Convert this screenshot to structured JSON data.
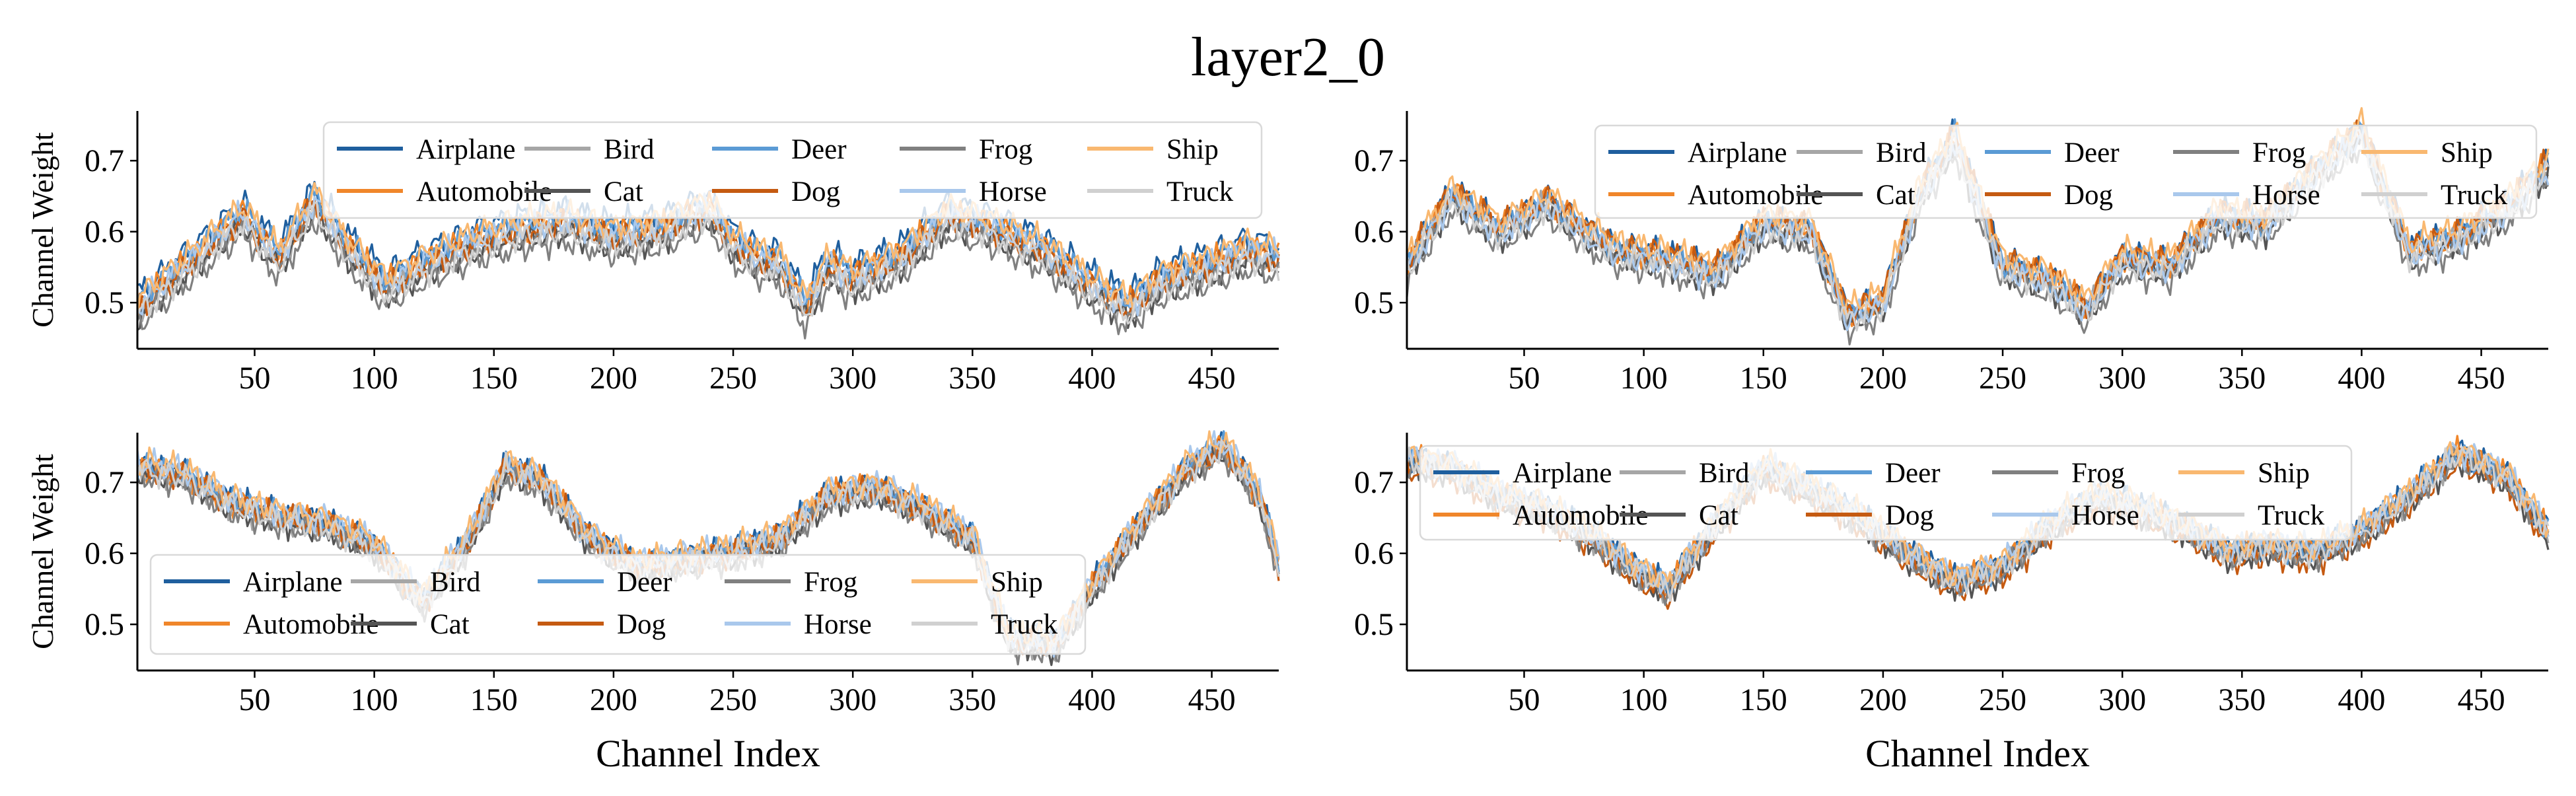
{
  "figure": {
    "title": "layer2_0",
    "ylabel": "Channel Weight",
    "xlabel": "Channel Index"
  },
  "colors": {
    "Airplane": "#1f5f9e",
    "Automobile": "#f0862a",
    "Bird": "#a6a6a6",
    "Cat": "#545454",
    "Deer": "#5b9bd5",
    "Dog": "#c55a11",
    "Frog": "#808080",
    "Horse": "#a9c8ec",
    "Ship": "#f9b870",
    "Truck": "#d0d0d0"
  },
  "legend_order": [
    "Airplane",
    "Automobile",
    "Bird",
    "Cat",
    "Deer",
    "Dog",
    "Frog",
    "Horse",
    "Ship",
    "Truck"
  ],
  "chart_data": [
    {
      "type": "line",
      "panel": "top-left",
      "xlim": [
        1,
        478
      ],
      "ylim": [
        0.435,
        0.77
      ],
      "xticks": [
        50,
        100,
        150,
        200,
        250,
        300,
        350,
        400,
        450
      ],
      "yticks": [
        0.5,
        0.6,
        0.7
      ],
      "ylabel": "Channel Weight",
      "xlabel": "",
      "legend_placement": "top-right",
      "x_anchor": [
        1,
        25,
        45,
        60,
        75,
        90,
        105,
        120,
        140,
        160,
        180,
        200,
        220,
        240,
        250,
        260,
        270,
        280,
        290,
        300,
        320,
        340,
        360,
        380,
        400,
        415,
        430,
        450,
        465,
        478
      ],
      "base": [
        0.49,
        0.56,
        0.62,
        0.56,
        0.64,
        0.57,
        0.52,
        0.55,
        0.58,
        0.6,
        0.61,
        0.59,
        0.6,
        0.63,
        0.58,
        0.56,
        0.55,
        0.49,
        0.55,
        0.53,
        0.56,
        0.62,
        0.6,
        0.57,
        0.52,
        0.49,
        0.53,
        0.55,
        0.57,
        0.56
      ],
      "series_offsets": {
        "Airplane": 0.022,
        "Automobile": 0.008,
        "Bird": -0.004,
        "Cat": -0.012,
        "Deer": 0.012,
        "Dog": 0.0,
        "Frog": -0.022,
        "Horse": 0.006,
        "Ship": 0.016,
        "Truck": -0.008
      }
    },
    {
      "type": "line",
      "panel": "top-right",
      "xlim": [
        1,
        478
      ],
      "ylim": [
        0.435,
        0.77
      ],
      "xticks": [
        50,
        100,
        150,
        200,
        250,
        300,
        350,
        400,
        450
      ],
      "yticks": [
        0.5,
        0.6,
        0.7
      ],
      "ylabel": "",
      "xlabel": "",
      "legend_placement": "top-right",
      "x_anchor": [
        1,
        20,
        40,
        60,
        75,
        90,
        110,
        130,
        150,
        170,
        185,
        200,
        215,
        230,
        250,
        270,
        285,
        300,
        320,
        340,
        360,
        380,
        400,
        420,
        440,
        460,
        478
      ],
      "base": [
        0.55,
        0.65,
        0.6,
        0.64,
        0.6,
        0.57,
        0.56,
        0.54,
        0.61,
        0.6,
        0.48,
        0.5,
        0.65,
        0.73,
        0.55,
        0.53,
        0.49,
        0.56,
        0.55,
        0.62,
        0.61,
        0.68,
        0.74,
        0.57,
        0.59,
        0.63,
        0.69
      ],
      "series_offsets": {
        "Airplane": 0.01,
        "Automobile": 0.006,
        "Bird": 0.0,
        "Cat": -0.01,
        "Deer": 0.004,
        "Dog": 0.008,
        "Frog": -0.018,
        "Horse": -0.004,
        "Ship": 0.014,
        "Truck": -0.006
      }
    },
    {
      "type": "line",
      "panel": "bottom-left",
      "xlim": [
        1,
        478
      ],
      "ylim": [
        0.435,
        0.77
      ],
      "xticks": [
        50,
        100,
        150,
        200,
        250,
        300,
        350,
        400,
        450
      ],
      "yticks": [
        0.5,
        0.6,
        0.7
      ],
      "ylabel": "Channel Weight",
      "xlabel": "Channel Index",
      "legend_placement": "lower-left",
      "x_anchor": [
        1,
        20,
        40,
        60,
        80,
        100,
        120,
        140,
        155,
        170,
        190,
        210,
        230,
        250,
        270,
        290,
        310,
        330,
        350,
        365,
        385,
        400,
        420,
        440,
        455,
        470,
        478
      ],
      "base": [
        0.72,
        0.71,
        0.67,
        0.65,
        0.64,
        0.61,
        0.53,
        0.62,
        0.72,
        0.7,
        0.62,
        0.58,
        0.59,
        0.6,
        0.62,
        0.68,
        0.69,
        0.66,
        0.62,
        0.48,
        0.47,
        0.55,
        0.64,
        0.72,
        0.75,
        0.68,
        0.58
      ],
      "series_offsets": {
        "Airplane": 0.006,
        "Automobile": 0.002,
        "Bird": -0.004,
        "Cat": -0.006,
        "Deer": 0.004,
        "Dog": 0.0,
        "Frog": -0.01,
        "Horse": 0.008,
        "Ship": 0.01,
        "Truck": -0.002
      }
    },
    {
      "type": "line",
      "panel": "bottom-right",
      "xlim": [
        1,
        478
      ],
      "ylim": [
        0.435,
        0.77
      ],
      "xticks": [
        50,
        100,
        150,
        200,
        250,
        300,
        350,
        400,
        450
      ],
      "yticks": [
        0.5,
        0.6,
        0.7
      ],
      "ylabel": "",
      "xlabel": "Channel Index",
      "legend_placement": "top-left",
      "x_anchor": [
        1,
        20,
        40,
        60,
        80,
        95,
        110,
        130,
        150,
        170,
        190,
        210,
        230,
        250,
        270,
        290,
        310,
        330,
        345,
        360,
        380,
        400,
        420,
        440,
        460,
        478
      ],
      "base": [
        0.73,
        0.72,
        0.68,
        0.66,
        0.62,
        0.58,
        0.55,
        0.64,
        0.72,
        0.69,
        0.65,
        0.6,
        0.56,
        0.58,
        0.64,
        0.68,
        0.66,
        0.63,
        0.6,
        0.61,
        0.6,
        0.63,
        0.68,
        0.74,
        0.71,
        0.63
      ],
      "series_offsets": {
        "Airplane": 0.004,
        "Automobile": 0.002,
        "Bird": -0.004,
        "Cat": -0.008,
        "Deer": 0.003,
        "Dog": -0.012,
        "Frog": -0.006,
        "Horse": 0.006,
        "Ship": 0.008,
        "Truck": 0.0
      }
    }
  ]
}
